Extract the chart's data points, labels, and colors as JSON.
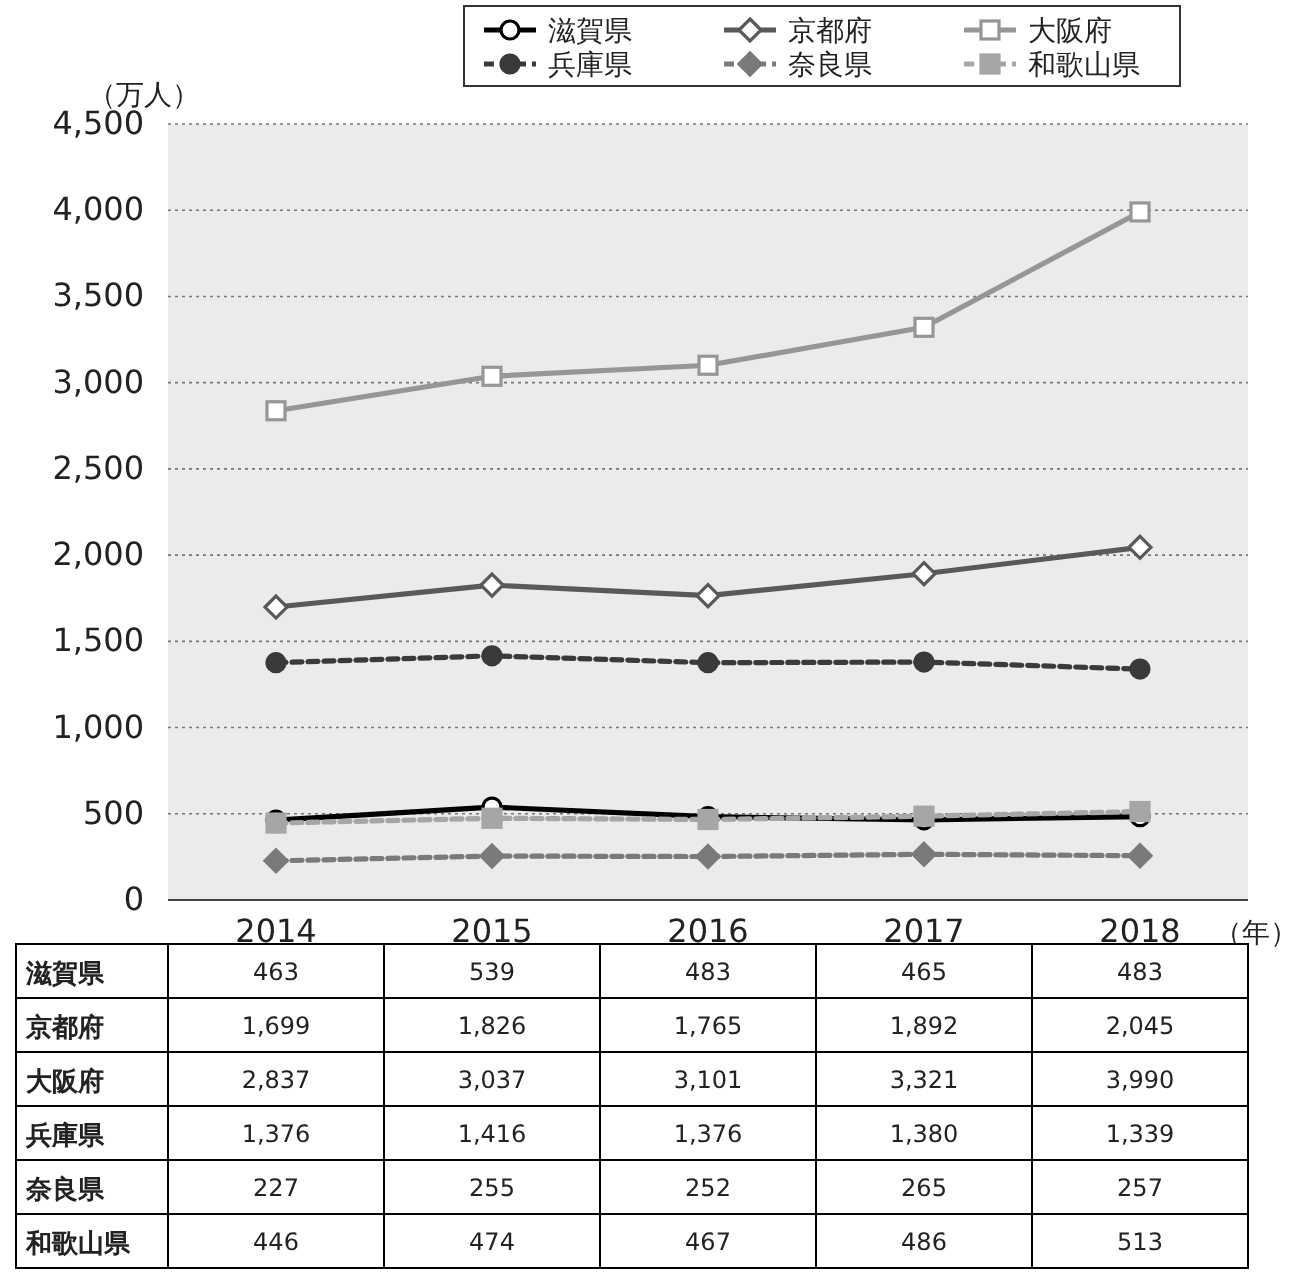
{
  "chart_data": {
    "type": "line",
    "ylabel": "（万人）",
    "xlabel": "（年）",
    "categories": [
      "2014",
      "2015",
      "2016",
      "2017",
      "2018"
    ],
    "series": [
      {
        "name": "滋賀県",
        "color": "#000000",
        "marker": "circle",
        "line_style": "solid",
        "values": [
          463,
          539,
          483,
          465,
          483
        ],
        "value_labels": [
          "463",
          "539",
          "483",
          "465",
          "483"
        ]
      },
      {
        "name": "京都府",
        "color": "#595959",
        "marker": "diamond",
        "line_style": "solid",
        "values": [
          1699,
          1826,
          1765,
          1892,
          2045
        ],
        "value_labels": [
          "1,699",
          "1,826",
          "1,765",
          "1,892",
          "2,045"
        ]
      },
      {
        "name": "大阪府",
        "color": "#969696",
        "marker": "square",
        "line_style": "solid",
        "values": [
          2837,
          3037,
          3101,
          3321,
          3990
        ],
        "value_labels": [
          "2,837",
          "3,037",
          "3,101",
          "3,321",
          "3,990"
        ]
      },
      {
        "name": "兵庫県",
        "color": "#3a3a3a",
        "marker": "circle",
        "line_style": "dashed",
        "values": [
          1376,
          1416,
          1376,
          1380,
          1339
        ],
        "value_labels": [
          "1,376",
          "1,416",
          "1,376",
          "1,380",
          "1,339"
        ]
      },
      {
        "name": "奈良県",
        "color": "#7a7a7a",
        "marker": "diamond",
        "line_style": "dashed",
        "values": [
          227,
          255,
          252,
          265,
          257
        ],
        "value_labels": [
          "227",
          "255",
          "252",
          "265",
          "257"
        ]
      },
      {
        "name": "和歌山県",
        "color": "#a6a6a6",
        "marker": "square",
        "line_style": "dashed",
        "values": [
          446,
          474,
          467,
          486,
          513
        ],
        "value_labels": [
          "446",
          "474",
          "467",
          "486",
          "513"
        ]
      }
    ],
    "ylim": [
      0,
      4500
    ],
    "yticks": [
      0,
      500,
      {
        "value": 1000,
        "label": "1,000"
      },
      {
        "value": 1500,
        "label": "1,500"
      },
      {
        "value": 2000,
        "label": "2,000"
      },
      {
        "value": 2500,
        "label": "2,500"
      },
      {
        "value": 3000,
        "label": "3,000"
      },
      {
        "value": 3500,
        "label": "3,500"
      },
      {
        "value": 4000,
        "label": "4,000"
      },
      {
        "value": 4500,
        "label": "4,500"
      }
    ],
    "grid": "y",
    "legend": "top"
  }
}
